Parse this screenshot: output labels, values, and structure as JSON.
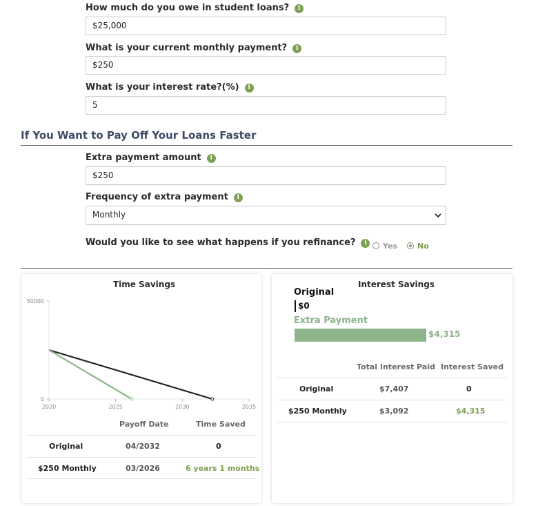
{
  "form": {
    "owe": {
      "label": "How much do you owe in student loans?",
      "value": "$25,000"
    },
    "payment": {
      "label": "What is your current monthly payment?",
      "value": "$250"
    },
    "rate": {
      "label": "What is your interest rate?(%)",
      "value": "5"
    }
  },
  "faster": {
    "title": "If You Want to Pay Off Your Loans Faster",
    "extra": {
      "label": "Extra payment amount",
      "value": "$250"
    },
    "frequency": {
      "label": "Frequency of extra payment",
      "value": "Monthly"
    },
    "refinance": {
      "label": "Would you like to see what happens if you refinance?",
      "yes": "Yes",
      "no": "No",
      "selected": "No"
    }
  },
  "info_glyph": "i",
  "time_savings": {
    "title": "Time Savings",
    "chart_data": {
      "type": "line",
      "x_ticks": [
        "2020",
        "2025",
        "2030",
        "2035"
      ],
      "y_ticks": [
        "50000",
        "0"
      ],
      "xlim": [
        2020,
        2035
      ],
      "ylim": [
        0,
        50000
      ],
      "series": [
        {
          "color": "#222222",
          "x": [
            2020,
            2032.25
          ],
          "y": [
            25000,
            0
          ]
        },
        {
          "color": "#8db48a",
          "x": [
            2020,
            2026.2
          ],
          "y": [
            25000,
            0
          ]
        }
      ]
    },
    "table": {
      "headers": [
        "",
        "Payoff Date",
        "Time Saved"
      ],
      "rows": [
        {
          "label": "Original",
          "date": "04/2032",
          "saved": "0"
        },
        {
          "label": "$250 Monthly",
          "date": "03/2026",
          "saved": "6 years 1 months"
        }
      ]
    }
  },
  "interest_savings": {
    "title": "Interest Savings",
    "bars": {
      "original_label": "Original",
      "original_value": "$0",
      "extra_label": "Extra Payment",
      "extra_value": "$4,315",
      "extra_fraction": 1.0
    },
    "table": {
      "headers": [
        "",
        "Total Interest Paid",
        "Interest Saved"
      ],
      "rows": [
        {
          "label": "Original",
          "paid": "$7,407",
          "saved": "0"
        },
        {
          "label": "$250 Monthly",
          "paid": "$3,092",
          "saved": "$4,315"
        }
      ]
    }
  },
  "colors": {
    "accent": "#7ea053",
    "bar_green": "#8db48a",
    "title": "#414b66"
  }
}
